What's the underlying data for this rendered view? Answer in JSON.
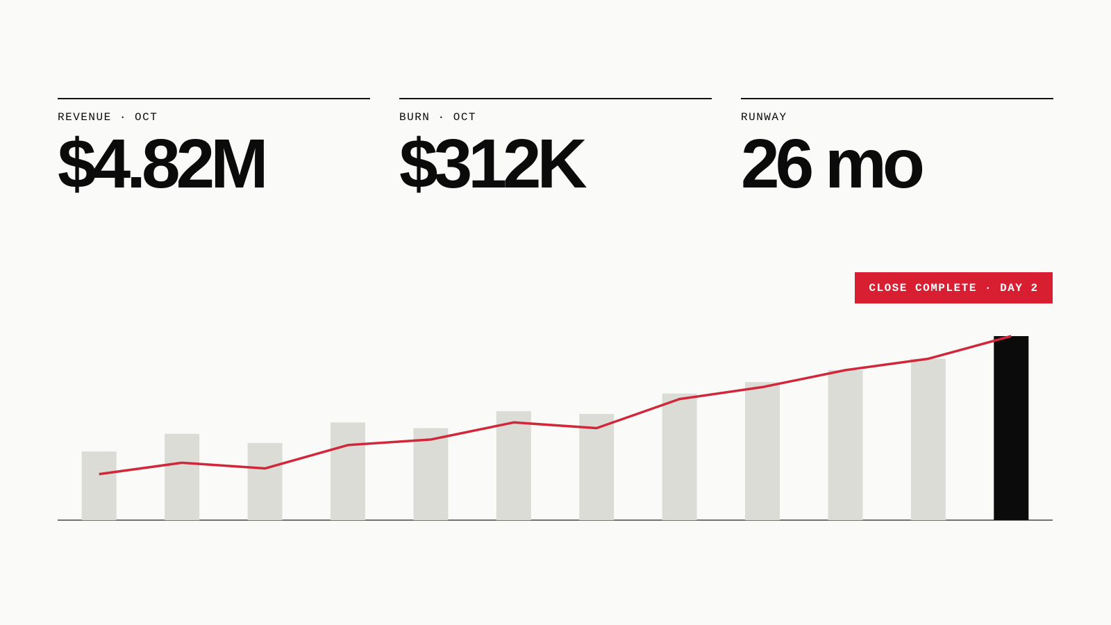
{
  "kpis": [
    {
      "label": "REVENUE · OCT",
      "value": "$4.82M"
    },
    {
      "label": "BURN · OCT",
      "value": "$312K"
    },
    {
      "label": "RUNWAY",
      "value": "26 mo"
    }
  ],
  "badge": "CLOSE COMPLETE · DAY 2",
  "chart_data": {
    "type": "bar",
    "ylim": [
      0,
      100
    ],
    "series": [
      {
        "type": "bar",
        "color": "#dcdcd6",
        "colors": [
          "#dcdcd6",
          "#dcdcd6",
          "#dcdcd6",
          "#dcdcd6",
          "#dcdcd6",
          "#dcdcd6",
          "#dcdcd6",
          "#dcdcd6",
          "#dcdcd6",
          "#dcdcd6",
          "#dcdcd6",
          "#0b0b0b"
        ],
        "values": [
          37.3,
          46.9,
          41.9,
          53.1,
          50,
          59.2,
          57.7,
          68.8,
          75,
          81.5,
          87.7,
          100
        ]
      },
      {
        "type": "line",
        "color": "#d0283a",
        "values": [
          25,
          31.2,
          28.1,
          40.8,
          43.8,
          53.1,
          50,
          65.8,
          72.3,
          81.5,
          87.7,
          100
        ]
      }
    ]
  }
}
